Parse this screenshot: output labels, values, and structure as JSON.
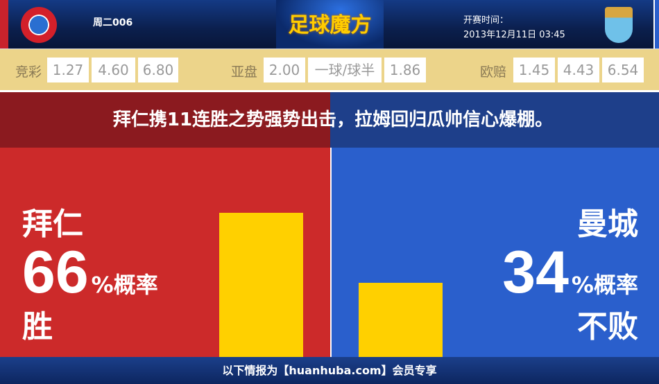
{
  "header": {
    "match_code": "周二006",
    "brand": "足球魔方",
    "time_label": "开赛时间：",
    "time_value": "2013年12月11日 03:45",
    "home_logo": "bayern-logo",
    "away_logo": "man-city-logo"
  },
  "odds": {
    "jc": {
      "label": "竞彩",
      "values": [
        "1.27",
        "4.60",
        "6.80"
      ]
    },
    "yp": {
      "label": "亚盘",
      "values": [
        "2.00",
        "一球/球半",
        "1.86"
      ]
    },
    "op": {
      "label": "欧赔",
      "values": [
        "1.45",
        "4.43",
        "6.54"
      ]
    }
  },
  "banner": "拜仁携11连胜之势强势出击，拉姆回归瓜帅信心爆棚。",
  "home": {
    "name": "拜仁",
    "percent": "66",
    "suffix": "%概率",
    "result": "胜",
    "value": 66,
    "color": "#cc2a2a"
  },
  "away": {
    "name": "曼城",
    "percent": "34",
    "suffix": "%概率",
    "result": "不败",
    "value": 34,
    "color": "#2a5fcc"
  },
  "bar_color": "#ffd000",
  "footer": "以下情报为【huanhuba.com】会员专享"
}
